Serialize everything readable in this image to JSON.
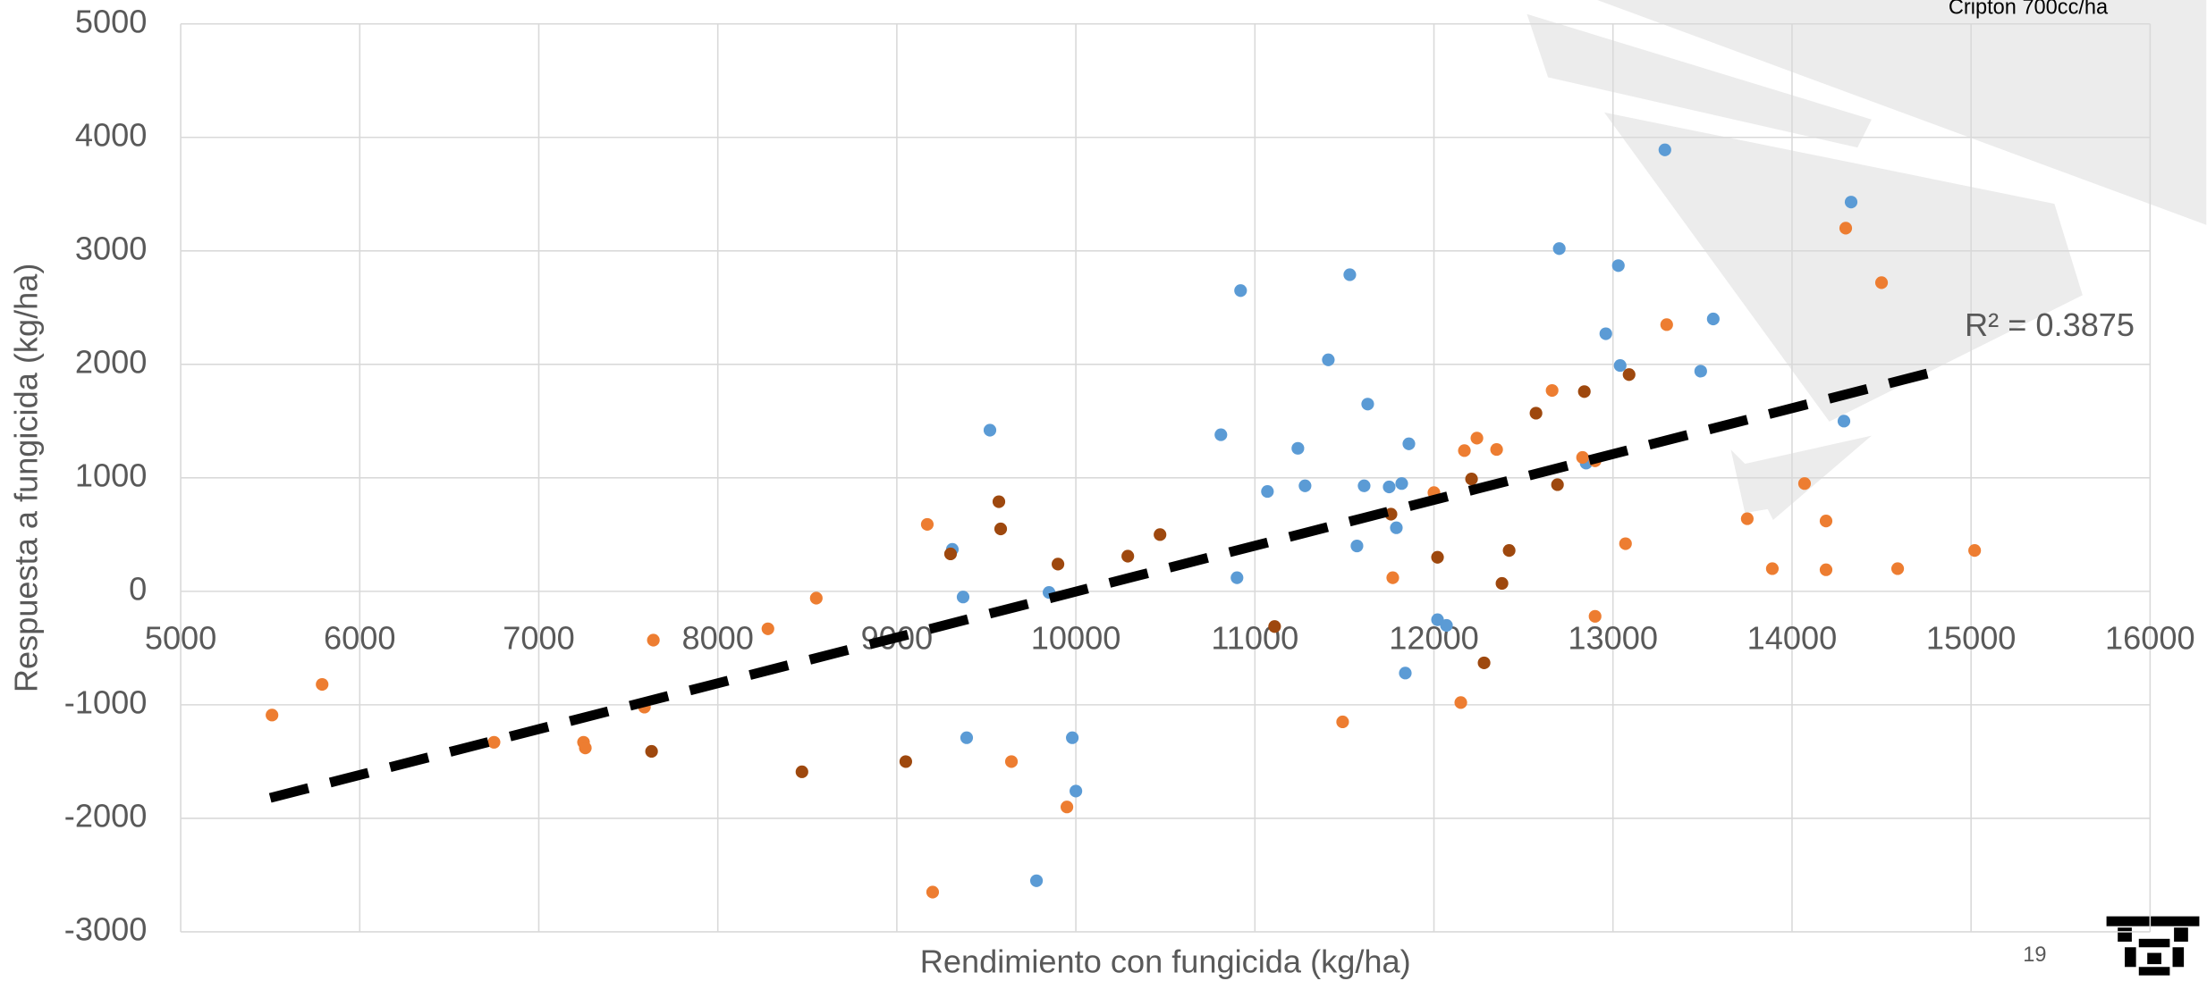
{
  "chart_data": {
    "type": "scatter",
    "top_note": "Cripton 700cc/ha",
    "page_number": "19",
    "x_label": "Rendimiento con fungicida (kg/ha)",
    "y_label": "Respuesta a fungicida (kg/ha)",
    "xlim": [
      5000,
      16000
    ],
    "xticks": [
      5000,
      6000,
      7000,
      8000,
      9000,
      10000,
      11000,
      12000,
      13000,
      14000,
      15000,
      16000
    ],
    "ylim": [
      -3000,
      5000
    ],
    "yticks": [
      -3000,
      -2000,
      -1000,
      0,
      1000,
      2000,
      3000,
      4000,
      5000
    ],
    "grid": true,
    "series": [
      {
        "color": "#5b9bd5",
        "x": [
          13290,
          14330,
          12700,
          13030,
          10920,
          11530,
          12960,
          13560,
          11410,
          13040,
          13490,
          11630,
          14290,
          9520,
          10810,
          11860,
          11240,
          11070,
          11280,
          11610,
          11750,
          11820,
          11790,
          11570,
          10900,
          9850,
          9370,
          9310,
          12020,
          12070,
          11840,
          9390,
          9980,
          10000,
          9780,
          12850
        ],
        "values": [
          3890,
          3430,
          3020,
          2870,
          2650,
          2790,
          2270,
          2400,
          2040,
          1990,
          1940,
          1650,
          1500,
          1420,
          1380,
          1300,
          1260,
          880,
          930,
          930,
          920,
          950,
          560,
          400,
          120,
          -10,
          -50,
          370,
          -250,
          -300,
          -720,
          -1290,
          -1290,
          -1760,
          -2550,
          1130
        ]
      },
      {
        "color": "#ed7d31",
        "x": [
          14300,
          14500,
          13300,
          12660,
          12240,
          12350,
          12170,
          12830,
          12900,
          12000,
          14070,
          14190,
          13750,
          13070,
          15020,
          13890,
          14190,
          14590,
          11770,
          9170,
          8550,
          8280,
          7640,
          12900,
          7590,
          5510,
          5790,
          6750,
          7250,
          7260,
          12150,
          11490,
          9640,
          9950,
          9200
        ],
        "values": [
          3200,
          2720,
          2350,
          1770,
          1350,
          1250,
          1240,
          1180,
          1150,
          870,
          950,
          620,
          640,
          420,
          360,
          200,
          190,
          200,
          120,
          590,
          -60,
          -330,
          -430,
          -220,
          -1020,
          -1090,
          -820,
          -1330,
          -1330,
          -1380,
          -980,
          -1150,
          -1500,
          -1900,
          -2650
        ]
      },
      {
        "color": "#9e480e",
        "x": [
          13090,
          12570,
          12840,
          12210,
          12690,
          9570,
          9580,
          12420,
          10470,
          10290,
          9900,
          9300,
          12020,
          12380,
          11110,
          12280,
          9050,
          8470,
          7630,
          11760
        ],
        "values": [
          1910,
          1570,
          1760,
          990,
          940,
          790,
          550,
          360,
          500,
          310,
          240,
          330,
          300,
          70,
          -310,
          -630,
          -1500,
          -1590,
          -1410,
          680
        ]
      }
    ],
    "trendline": {
      "x": [
        5500,
        14820
      ],
      "y": [
        -1820,
        1945
      ],
      "label": "R² = 0.3875"
    }
  }
}
